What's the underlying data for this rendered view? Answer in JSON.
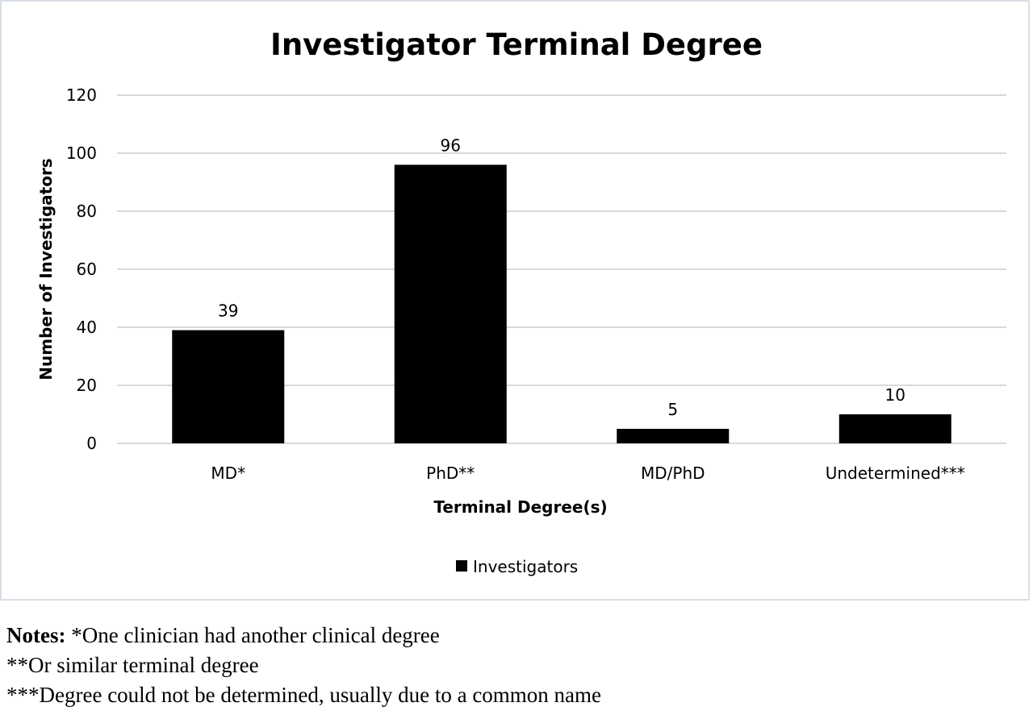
{
  "chart_data": {
    "type": "bar",
    "title": "Investigator Terminal Degree",
    "xlabel": "Terminal Degree(s)",
    "ylabel": "Number of Investigators",
    "categories": [
      "MD*",
      "PhD**",
      "MD/PhD",
      "Undetermined***"
    ],
    "series": [
      {
        "name": "Investigators",
        "values": [
          39,
          96,
          5,
          10
        ],
        "color": "#000000"
      }
    ],
    "ylim": [
      0,
      120
    ],
    "yticks": [
      0,
      20,
      40,
      60,
      80,
      100,
      120
    ],
    "grid": true,
    "legend": "bottom-center"
  },
  "notes": {
    "prefix": "Notes:",
    "lines": [
      " *One clinician had another clinical degree",
      "**Or similar terminal degree",
      "***Degree could not be determined, usually due to a common name"
    ]
  }
}
